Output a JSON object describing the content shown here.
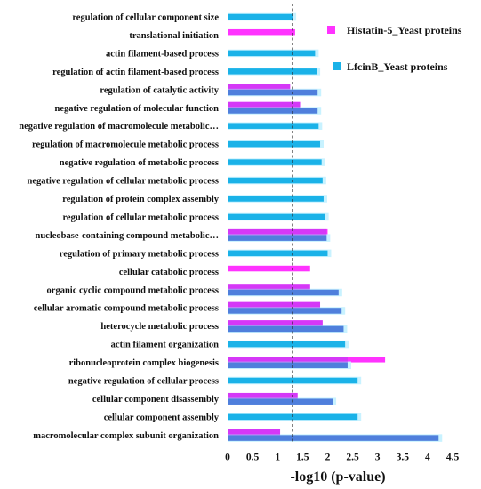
{
  "chart_data": {
    "type": "bar",
    "orientation": "horizontal",
    "xlabel": "-log10 (p-value)",
    "xlim": [
      0,
      4.5
    ],
    "xticks": [
      "0",
      "0.5",
      "1",
      "1.5",
      "2",
      "2.5",
      "3",
      "3.5",
      "4",
      "4.5"
    ],
    "threshold_line": 1.3,
    "legend_position": "top-right",
    "categories": [
      "regulation of cellular component size",
      "translational initiation",
      "actin filament-based process",
      "regulation of actin filament-based process",
      "regulation of catalytic activity",
      "negative regulation of molecular function",
      "negative regulation of macromolecule metabolic…",
      "regulation of macromolecule metabolic process",
      "negative regulation of metabolic process",
      "negative regulation of cellular metabolic process",
      "regulation of protein complex assembly",
      "regulation of cellular metabolic process",
      "nucleobase-containing compound metabolic…",
      "regulation of primary metabolic process",
      "cellular catabolic process",
      "organic cyclic compound metabolic process",
      "cellular aromatic compound metabolic process",
      "heterocycle metabolic process",
      "actin filament organization",
      "ribonucleoprotein complex biogenesis",
      "negative regulation of cellular process",
      "cellular component disassembly",
      "cellular component assembly",
      "macromolecular complex subunit organization"
    ],
    "series": [
      {
        "name": "Histatin-5_Yeast proteins",
        "color": "#ff33ff",
        "values": [
          null,
          1.35,
          null,
          null,
          1.25,
          1.45,
          null,
          null,
          null,
          null,
          null,
          null,
          2.0,
          null,
          1.65,
          1.65,
          1.85,
          1.9,
          null,
          3.15,
          null,
          1.4,
          null,
          1.05
        ]
      },
      {
        "name": "LfcinB_Yeast proteins",
        "color": "#1ab2e8",
        "values": [
          1.3,
          null,
          1.75,
          1.78,
          1.8,
          1.8,
          1.82,
          1.85,
          1.88,
          1.9,
          1.92,
          1.95,
          1.98,
          2.0,
          null,
          2.22,
          2.28,
          2.32,
          2.35,
          2.4,
          2.6,
          2.1,
          2.6,
          4.22
        ]
      }
    ]
  }
}
